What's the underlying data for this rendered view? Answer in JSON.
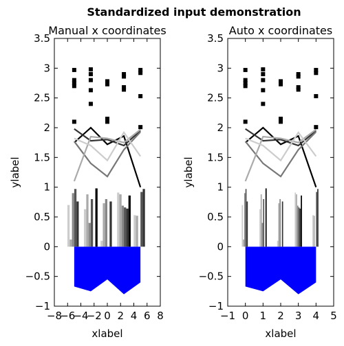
{
  "figure": {
    "suptitle": "Standardized input demonstration"
  },
  "chart_data": [
    {
      "type": "composite",
      "title": "Manual x coordinates",
      "xlabel": "xlabel",
      "ylabel": "ylabel",
      "xlim": [
        -8,
        8
      ],
      "ylim": [
        -1,
        3.5
      ],
      "xticks": [
        "−8",
        "−6",
        "−4",
        "−2",
        "0",
        "2",
        "4",
        "6",
        "8"
      ],
      "xtick_values": [
        -8,
        -6,
        -4,
        -2,
        0,
        2,
        4,
        6,
        8
      ],
      "yticks": [
        "−1",
        "−0.5",
        "0",
        "0.5",
        "1",
        "1.5",
        "2",
        "2.5",
        "3",
        "3.5"
      ],
      "ytick_values": [
        -1,
        -0.5,
        0,
        0.5,
        1,
        1.5,
        2,
        2.5,
        3,
        3.5
      ],
      "grid": false,
      "x": [
        -5,
        -2.5,
        0,
        2.5,
        5
      ],
      "bar_offsets": [
        -0.857,
        -0.514,
        -0.171,
        0.171,
        0.514,
        0.857
      ],
      "bar_width": 0.34,
      "bar_colors": [
        "#cccccc",
        "#aaaaaa",
        "#888888",
        "#555555",
        "#333333",
        "#000000"
      ],
      "bar_groups": [
        [
          0.7,
          0.12,
          0.9,
          0.97,
          0.76,
          0.0
        ],
        [
          0.63,
          0.88,
          0.4,
          0.8,
          0.0,
          0.98
        ],
        [
          0.1,
          0.73,
          0.8,
          0.0,
          0.76,
          0.0
        ],
        [
          0.91,
          0.88,
          0.69,
          0.66,
          0.64,
          0.86
        ],
        [
          0.53,
          0.52,
          0.0,
          0.92,
          0.97,
          0.0
        ]
      ],
      "lines": [
        {
          "color": "#000000",
          "width": 2.2,
          "values": [
            1.75,
            2.0,
            1.72,
            1.86,
            1.0
          ]
        },
        {
          "color": "#333333",
          "width": 2.2,
          "values": [
            1.98,
            1.78,
            1.8,
            1.7,
            1.95
          ]
        },
        {
          "color": "#777777",
          "width": 2.2,
          "values": [
            1.77,
            1.4,
            1.18,
            1.63,
            1.93
          ]
        },
        {
          "color": "#aaaaaa",
          "width": 2.2,
          "values": [
            1.1,
            1.85,
            1.82,
            1.75,
            1.97
          ]
        },
        {
          "color": "#cccccc",
          "width": 2.2,
          "values": [
            1.82,
            1.7,
            1.45,
            1.92,
            1.52
          ]
        }
      ],
      "squares": [
        [
          2.97,
          2.8,
          2.75,
          2.7,
          2.1
        ],
        [
          2.98,
          2.9,
          2.8,
          2.63,
          2.4
        ],
        [
          2.78,
          2.73,
          2.15,
          2.1
        ],
        [
          2.9,
          2.86,
          2.68,
          2.64
        ],
        [
          2.97,
          2.92,
          2.53,
          2.01
        ]
      ],
      "area": {
        "color": "#0000ff",
        "top": [
          0,
          0,
          0,
          0,
          0
        ],
        "bottom": [
          -0.67,
          -0.75,
          -0.55,
          -0.8,
          -0.6
        ]
      }
    },
    {
      "type": "composite",
      "title": "Auto x coordinates",
      "xlabel": "xlabel",
      "ylabel": "ylabel",
      "xlim": [
        -1,
        5
      ],
      "ylim": [
        -1,
        3.5
      ],
      "xticks": [
        "−1",
        "0",
        "1",
        "2",
        "3",
        "4",
        "5"
      ],
      "xtick_values": [
        -1,
        0,
        1,
        2,
        3,
        4,
        5
      ],
      "yticks": [
        "−1",
        "−0.5",
        "0",
        "0.5",
        "1",
        "1.5",
        "2",
        "2.5",
        "3",
        "3.5"
      ],
      "ytick_values": [
        -1,
        -0.5,
        0,
        0.5,
        1,
        1.5,
        2,
        2.5,
        3,
        3.5
      ],
      "grid": false,
      "x": [
        0,
        1,
        2,
        3,
        4
      ],
      "bar_offsets": [
        -0.171,
        -0.103,
        -0.034,
        0.034,
        0.103,
        0.171
      ],
      "bar_width": 0.068,
      "bar_colors": [
        "#cccccc",
        "#aaaaaa",
        "#888888",
        "#555555",
        "#333333",
        "#000000"
      ],
      "bar_groups": [
        [
          0.7,
          0.12,
          0.9,
          0.97,
          0.76,
          0.0
        ],
        [
          0.63,
          0.88,
          0.4,
          0.8,
          0.0,
          0.98
        ],
        [
          0.1,
          0.73,
          0.8,
          0.0,
          0.76,
          0.0
        ],
        [
          0.91,
          0.88,
          0.69,
          0.66,
          0.64,
          0.86
        ],
        [
          0.53,
          0.52,
          0.0,
          0.92,
          0.97,
          0.0
        ]
      ],
      "lines": [
        {
          "color": "#000000",
          "width": 2.2,
          "values": [
            1.75,
            2.0,
            1.72,
            1.86,
            1.0
          ]
        },
        {
          "color": "#333333",
          "width": 2.2,
          "values": [
            1.98,
            1.78,
            1.8,
            1.7,
            1.95
          ]
        },
        {
          "color": "#777777",
          "width": 2.2,
          "values": [
            1.77,
            1.4,
            1.18,
            1.63,
            1.93
          ]
        },
        {
          "color": "#aaaaaa",
          "width": 2.2,
          "values": [
            1.1,
            1.85,
            1.82,
            1.75,
            1.97
          ]
        },
        {
          "color": "#cccccc",
          "width": 2.2,
          "values": [
            1.82,
            1.7,
            1.45,
            1.92,
            1.52
          ]
        }
      ],
      "squares": [
        [
          2.97,
          2.8,
          2.75,
          2.7,
          2.1
        ],
        [
          2.98,
          2.9,
          2.8,
          2.63,
          2.4
        ],
        [
          2.78,
          2.73,
          2.15,
          2.1
        ],
        [
          2.9,
          2.86,
          2.68,
          2.64
        ],
        [
          2.97,
          2.92,
          2.53,
          2.01
        ]
      ],
      "area": {
        "color": "#0000ff",
        "top": [
          0,
          0,
          0,
          0,
          0
        ],
        "bottom": [
          -0.67,
          -0.75,
          -0.55,
          -0.8,
          -0.6
        ]
      }
    }
  ]
}
